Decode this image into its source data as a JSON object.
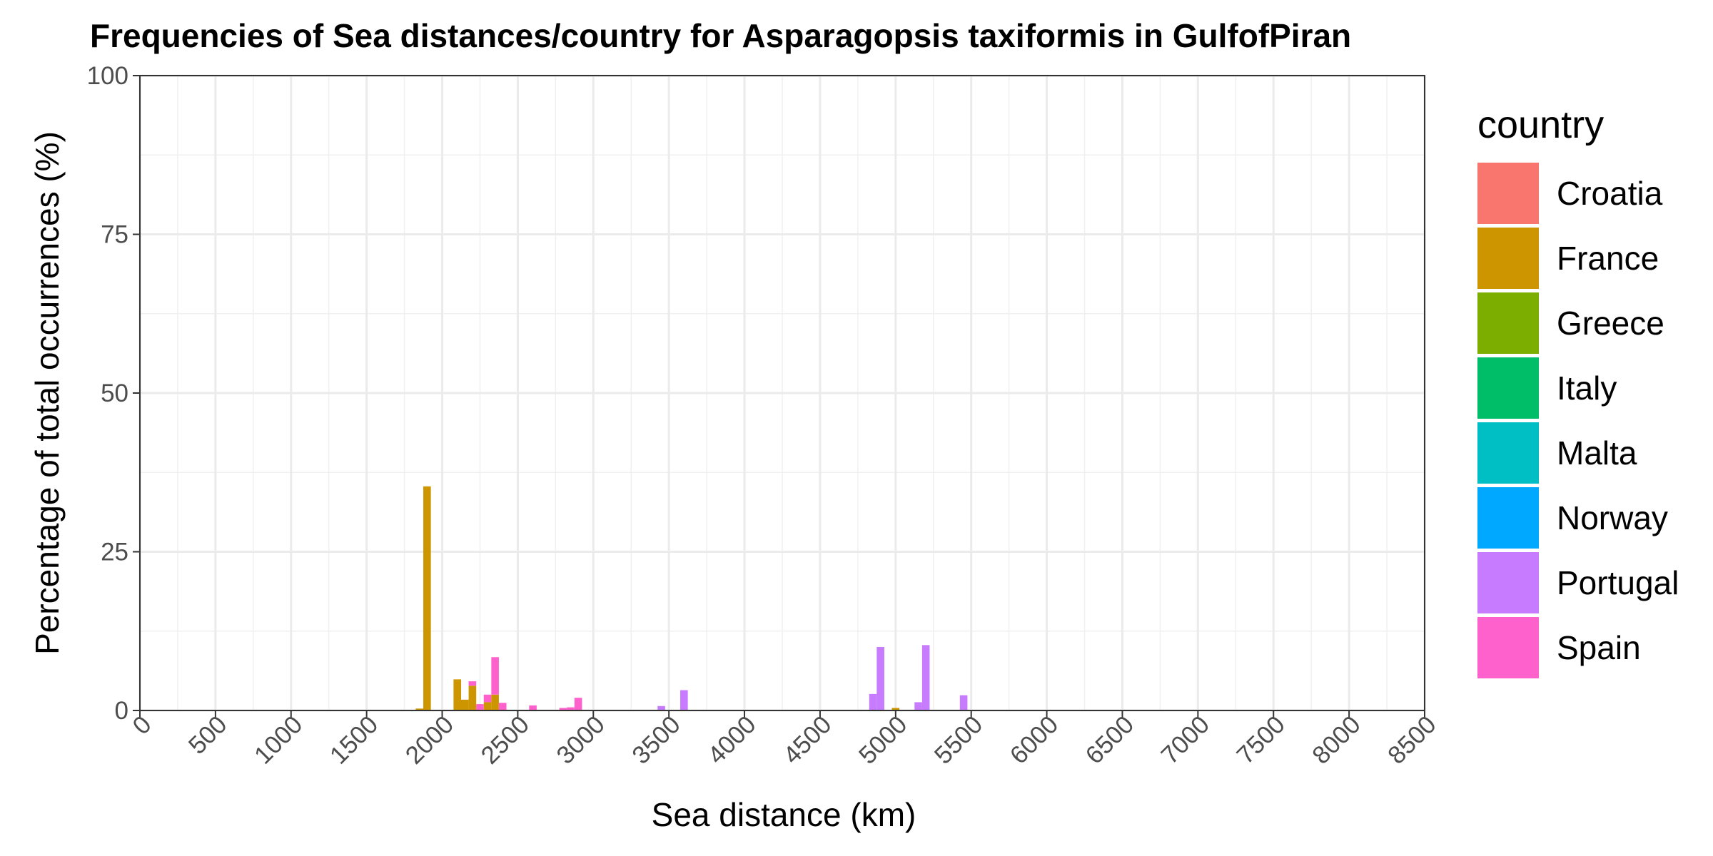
{
  "chart_data": {
    "type": "bar",
    "title": "Frequencies of Sea distances/country for Asparagopsis taxiformis in GulfofPiran",
    "xlabel": "Sea distance (km)",
    "ylabel": "Percentage of total occurrences (%)",
    "xlim": [
      0,
      8500
    ],
    "ylim": [
      0,
      100
    ],
    "x_ticks": [
      0,
      500,
      1000,
      1500,
      2000,
      2500,
      3000,
      3500,
      4000,
      4500,
      5000,
      5500,
      6000,
      6500,
      7000,
      7500,
      8000,
      8500
    ],
    "x_tick_labels": [
      "0",
      "500",
      "1000",
      "1500",
      "2000",
      "2500",
      "3000",
      "3500",
      "4000",
      "4500",
      "5000",
      "5500",
      "6000",
      "6500",
      "7000",
      "7500",
      "8000",
      "8500"
    ],
    "y_ticks": [
      0,
      25,
      50,
      75,
      100
    ],
    "y_tick_labels": [
      "0",
      "25",
      "50",
      "75",
      "100"
    ],
    "bin_width": 50,
    "grid": true,
    "legend": {
      "title": "country",
      "placement": "right",
      "entries": [
        {
          "name": "Croatia",
          "color": "#F8766D"
        },
        {
          "name": "France",
          "color": "#CD9600"
        },
        {
          "name": "Greece",
          "color": "#7CAE00"
        },
        {
          "name": "Italy",
          "color": "#00BE67"
        },
        {
          "name": "Malta",
          "color": "#00BFC4"
        },
        {
          "name": "Norway",
          "color": "#00A9FF"
        },
        {
          "name": "Portugal",
          "color": "#C77CFF"
        },
        {
          "name": "Spain",
          "color": "#FF61CC"
        }
      ]
    },
    "series": [
      {
        "name": "Croatia",
        "color": "#F8766D",
        "bars": []
      },
      {
        "name": "France",
        "color": "#CD9600",
        "bars": [
          {
            "x": 1850,
            "y": 0.3
          },
          {
            "x": 1900,
            "y": 35.3
          },
          {
            "x": 2100,
            "y": 4.9
          },
          {
            "x": 2150,
            "y": 1.7
          },
          {
            "x": 2200,
            "y": 3.9
          },
          {
            "x": 2300,
            "y": 1.3
          },
          {
            "x": 2350,
            "y": 2.5
          },
          {
            "x": 5000,
            "y": 0.4
          }
        ]
      },
      {
        "name": "Greece",
        "color": "#7CAE00",
        "bars": []
      },
      {
        "name": "Italy",
        "color": "#00BE67",
        "bars": []
      },
      {
        "name": "Malta",
        "color": "#00BFC4",
        "bars": []
      },
      {
        "name": "Norway",
        "color": "#00A9FF",
        "bars": []
      },
      {
        "name": "Portugal",
        "color": "#C77CFF",
        "bars": [
          {
            "x": 3450,
            "y": 0.7
          },
          {
            "x": 3600,
            "y": 3.2
          },
          {
            "x": 4850,
            "y": 2.6
          },
          {
            "x": 4900,
            "y": 10.0
          },
          {
            "x": 5150,
            "y": 1.3
          },
          {
            "x": 5200,
            "y": 10.3
          },
          {
            "x": 5450,
            "y": 2.4
          }
        ]
      },
      {
        "name": "Spain",
        "color": "#FF61CC",
        "bars": [
          {
            "x": 2200,
            "y": 0.7
          },
          {
            "x": 2250,
            "y": 1.0
          },
          {
            "x": 2300,
            "y": 1.2
          },
          {
            "x": 2350,
            "y": 5.9
          },
          {
            "x": 2400,
            "y": 1.2
          },
          {
            "x": 2600,
            "y": 0.8
          },
          {
            "x": 2800,
            "y": 0.4
          },
          {
            "x": 2850,
            "y": 0.5
          },
          {
            "x": 2900,
            "y": 2.0
          }
        ]
      }
    ]
  }
}
